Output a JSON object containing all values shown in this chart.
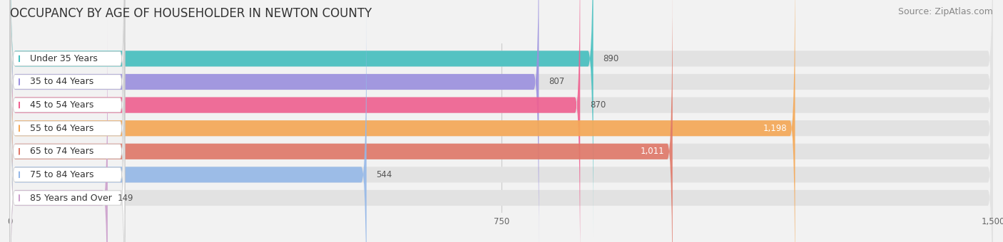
{
  "title": "OCCUPANCY BY AGE OF HOUSEHOLDER IN NEWTON COUNTY",
  "source": "Source: ZipAtlas.com",
  "categories": [
    "Under 35 Years",
    "35 to 44 Years",
    "45 to 54 Years",
    "55 to 64 Years",
    "65 to 74 Years",
    "75 to 84 Years",
    "85 Years and Over"
  ],
  "values": [
    890,
    807,
    870,
    1198,
    1011,
    544,
    149
  ],
  "bar_colors": [
    "#45bfbf",
    "#9b90df",
    "#f06090",
    "#f5a855",
    "#e07868",
    "#95b8e8",
    "#cc9fcc"
  ],
  "xlim": [
    0,
    1500
  ],
  "xticks": [
    0,
    750,
    1500
  ],
  "background_color": "#f2f2f2",
  "bar_bg_color": "#e2e2e2",
  "label_bg_color": "#ffffff",
  "title_fontsize": 12,
  "source_fontsize": 9,
  "label_fontsize": 9,
  "value_fontsize": 8.5
}
